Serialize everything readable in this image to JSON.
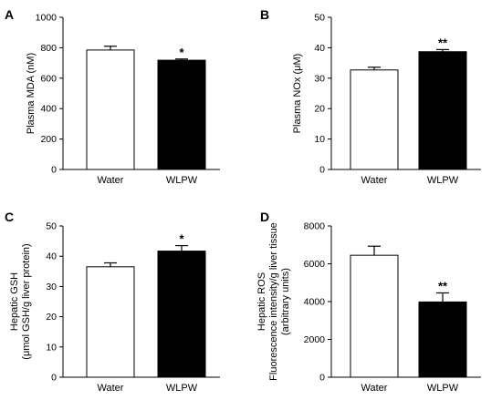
{
  "chart_data": [
    {
      "panel": "A",
      "type": "bar",
      "ylabel_lines": [
        "Plasma MDA (nM)"
      ],
      "ylim": [
        0,
        1000
      ],
      "yticks": [
        0,
        200,
        400,
        600,
        800,
        1000
      ],
      "categories": [
        "Water",
        "WLPW"
      ],
      "values": [
        785,
        718
      ],
      "errors": [
        25,
        8
      ],
      "significance": [
        "",
        "*"
      ],
      "colors": [
        "#ffffff",
        "#000000"
      ]
    },
    {
      "panel": "B",
      "type": "bar",
      "ylabel_lines": [
        "Plasma NOx (μM)"
      ],
      "ylim": [
        0,
        50
      ],
      "yticks": [
        0,
        10,
        20,
        30,
        40,
        50
      ],
      "categories": [
        "Water",
        "WLPW"
      ],
      "values": [
        32.7,
        38.7
      ],
      "errors": [
        0.9,
        0.7
      ],
      "significance": [
        "",
        "**"
      ],
      "colors": [
        "#ffffff",
        "#000000"
      ]
    },
    {
      "panel": "C",
      "type": "bar",
      "ylabel_lines": [
        "Hepatic GSH",
        "(μmol GSH/g liver protein)"
      ],
      "ylim": [
        0,
        50
      ],
      "yticks": [
        0,
        10,
        20,
        30,
        40,
        50
      ],
      "categories": [
        "Water",
        "WLPW"
      ],
      "values": [
        36.5,
        41.7
      ],
      "errors": [
        1.3,
        1.8
      ],
      "significance": [
        "",
        "*"
      ],
      "colors": [
        "#ffffff",
        "#000000"
      ]
    },
    {
      "panel": "D",
      "type": "bar",
      "ylabel_lines": [
        "Hepatic ROS",
        "Fluorescence intensity/g liver tissue",
        "(arbitrary units)"
      ],
      "ylim": [
        0,
        8000
      ],
      "yticks": [
        0,
        2000,
        4000,
        6000,
        8000
      ],
      "categories": [
        "Water",
        "WLPW"
      ],
      "values": [
        6450,
        3980
      ],
      "errors": [
        480,
        480
      ],
      "significance": [
        "",
        "**"
      ],
      "colors": [
        "#ffffff",
        "#000000"
      ]
    }
  ]
}
